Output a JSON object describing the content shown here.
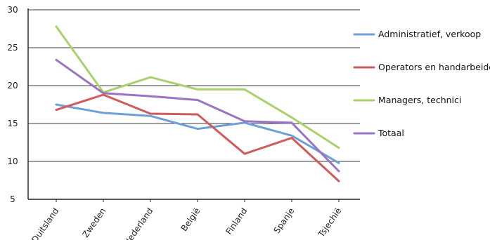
{
  "chart_data": {
    "type": "line",
    "title": "",
    "xlabel": "",
    "ylabel": "",
    "categories": [
      "Duitsland",
      "Zweden",
      "Nederland",
      "België",
      "Finland",
      "Spanje",
      "Tsjechië"
    ],
    "ylim": [
      5,
      30
    ],
    "yticks": [
      "5",
      "10",
      "15",
      "20",
      "25",
      "30"
    ],
    "grid": "horizontal",
    "legend_position": "right",
    "series": [
      {
        "name": "Administratief, verkoop",
        "color": "#6f9fd8",
        "values": [
          17.5,
          16.4,
          16.0,
          14.3,
          15.1,
          13.4,
          9.8
        ]
      },
      {
        "name": "Operators en handarbeiders",
        "color": "#cf5b5b",
        "values": [
          16.8,
          18.8,
          16.3,
          16.2,
          11.0,
          13.1,
          7.4
        ]
      },
      {
        "name": "Managers, technici",
        "color": "#a9d16c",
        "values": [
          27.8,
          19.1,
          21.1,
          19.5,
          19.5,
          15.8,
          11.8
        ]
      },
      {
        "name": "Totaal",
        "color": "#9a73c2",
        "values": [
          23.4,
          19.0,
          18.6,
          18.1,
          15.3,
          15.1,
          8.7
        ]
      }
    ]
  }
}
